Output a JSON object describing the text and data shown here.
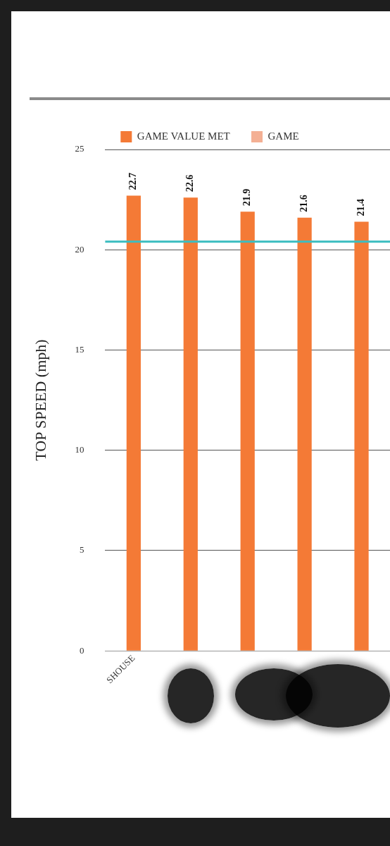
{
  "chart_data": {
    "type": "bar",
    "ylabel": "TOP SPEED (mph)",
    "categories": [
      "SHOUSE",
      null,
      null,
      null,
      null
    ],
    "series": [
      {
        "name": "GAME VALUE MET",
        "color": "#f47a36",
        "values": [
          22.7,
          22.6,
          21.9,
          21.6,
          21.4
        ]
      },
      {
        "name": "GAME",
        "color": "#f4b094",
        "values": [
          null,
          null,
          null,
          null,
          null
        ]
      }
    ],
    "ylim": [
      0,
      25
    ],
    "yticks": [
      0,
      5,
      10,
      15,
      20,
      25
    ],
    "grid": "y",
    "legend": "top",
    "data_labels": true,
    "ref_lines": [
      {
        "axis": "y",
        "value": 20.4,
        "color": "#3bbdc0"
      }
    ]
  }
}
